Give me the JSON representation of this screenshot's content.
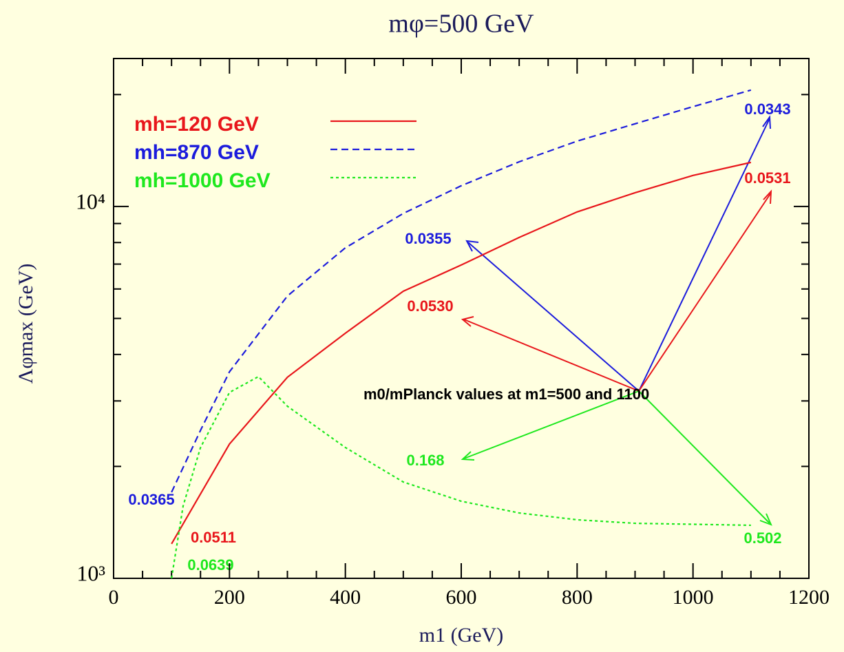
{
  "chart_data": {
    "type": "line",
    "title": "mφ=500 GeV",
    "x_label": "m1 (GeV)",
    "y_label": "Λφmax (GeV)",
    "xlim": [
      0,
      1200
    ],
    "xticks": [
      0,
      200,
      400,
      600,
      800,
      1000,
      1200
    ],
    "xminorticks": [
      50,
      100,
      150,
      250,
      300,
      350,
      450,
      500,
      550,
      650,
      700,
      750,
      850,
      900,
      950,
      1050,
      1100,
      1150
    ],
    "ylim": [
      1000,
      25000
    ],
    "log_y": true,
    "yticks": [
      {
        "value": 1000,
        "label": "10³"
      },
      {
        "value": 10000,
        "label": "10⁴"
      }
    ],
    "yminorticks": [
      2000,
      3000,
      4000,
      5000,
      6000,
      7000,
      8000,
      9000,
      20000
    ],
    "legend": "upper left",
    "series": [
      {
        "name": "mh=120 GeV",
        "color": "#e8161b",
        "style": "solid",
        "x": [
          100,
          200,
          300,
          400,
          500,
          600,
          700,
          800,
          900,
          1000,
          1100
        ],
        "values": [
          1238,
          2297,
          3474,
          4563,
          5918,
          6960,
          8256,
          9670,
          10890,
          12120,
          13140
        ]
      },
      {
        "name": "mh=870 GeV",
        "color": "#1b1bdc",
        "style": "dashed",
        "x": [
          100,
          150,
          200,
          300,
          400,
          500,
          600,
          700,
          800,
          900,
          1000,
          1100
        ],
        "values": [
          1704,
          2500,
          3593,
          5745,
          7742,
          9580,
          11370,
          13190,
          14990,
          16690,
          18560,
          20560
        ]
      },
      {
        "name": "mh=1000 GeV",
        "color": "#1ee81e",
        "style": "dotted",
        "x": [
          100,
          120,
          150,
          200,
          250,
          300,
          400,
          500,
          600,
          700,
          800,
          900,
          1100
        ],
        "values": [
          1000,
          1565,
          2248,
          3162,
          3488,
          2903,
          2248,
          1816,
          1612,
          1499,
          1437,
          1406,
          1389
        ]
      }
    ],
    "annotations": [
      "0.0343",
      "0.0531",
      "0.0355",
      "0.0530",
      "m0/mPlanck values at m1=500 and 1100",
      "0.168",
      "0.0365",
      "0.0511",
      "0.0639",
      "0.502"
    ]
  }
}
